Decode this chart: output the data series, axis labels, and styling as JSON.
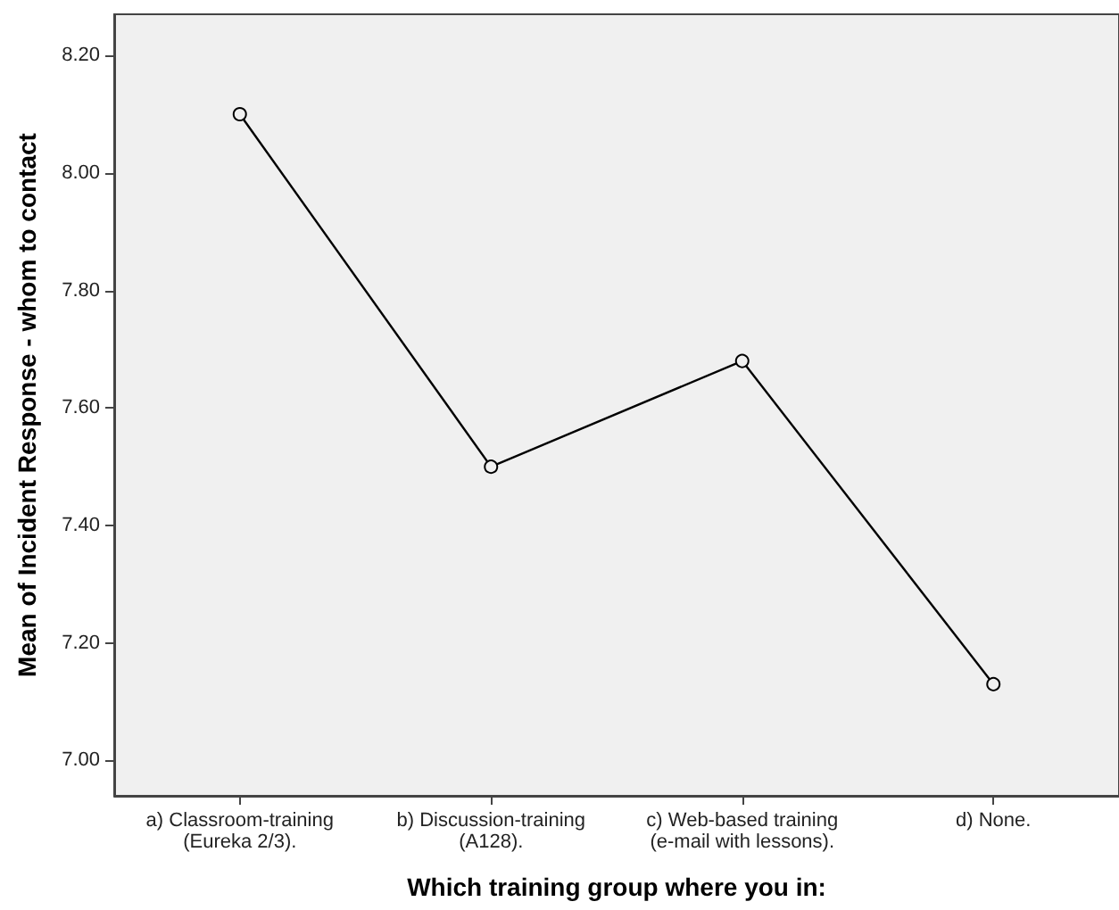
{
  "chart_data": {
    "type": "line",
    "xlabel": "Which training group where you in:",
    "ylabel": "Mean of Incident Response - whom to contact",
    "categories": [
      "a) Classroom-training\n(Eureka 2/3).",
      "b) Discussion-training\n(A128).",
      "c) Web-based training\n(e-mail with lessons).",
      "d) None."
    ],
    "values": [
      8.1,
      7.5,
      7.68,
      7.13
    ],
    "color": "#000000",
    "ylim": [
      6.94,
      8.27
    ],
    "yticks": [
      {
        "value": 7.0,
        "label": "7.00"
      },
      {
        "value": 7.2,
        "label": "7.20"
      },
      {
        "value": 7.4,
        "label": "7.40"
      },
      {
        "value": 7.6,
        "label": "7.60"
      },
      {
        "value": 7.8,
        "label": "7.80"
      },
      {
        "value": 8.0,
        "label": "8.00"
      },
      {
        "value": 8.2,
        "label": "8.20"
      }
    ],
    "grid": false,
    "marker": "circle",
    "line_style": "solid"
  }
}
